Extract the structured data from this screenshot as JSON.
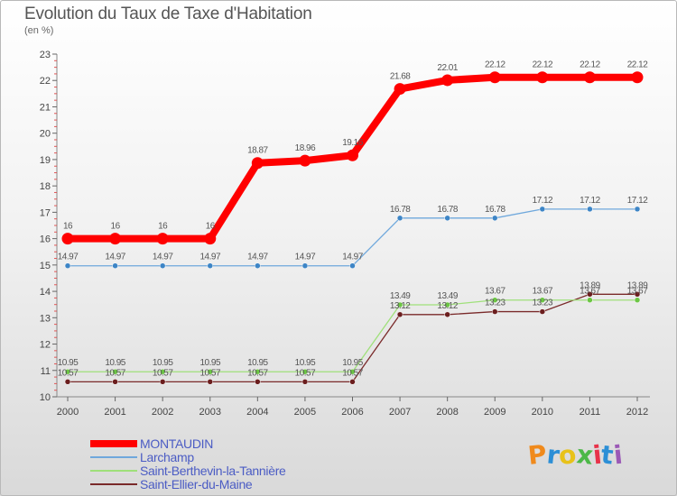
{
  "header": {
    "title": "Evolution du Taux de Taxe d'Habitation",
    "subtitle": "(en %)"
  },
  "logo": {
    "text": "Proxiti",
    "colors": [
      "#f08a1c",
      "#2c8fd6",
      "#e8c21a",
      "#4cb848",
      "#e8334a",
      "#2c8fd6",
      "#9b59b6"
    ]
  },
  "chart_data": {
    "type": "line",
    "title": "Evolution du Taux de Taxe d'Habitation",
    "ylabel": "(en %)",
    "xlabel": "",
    "x": [
      "2000",
      "2001",
      "2002",
      "2003",
      "2004",
      "2005",
      "2006",
      "2007",
      "2008",
      "2009",
      "2010",
      "2011",
      "2012"
    ],
    "ylim": [
      10,
      23
    ],
    "yticks": [
      "10",
      "11",
      "12",
      "13",
      "14",
      "15",
      "16",
      "17",
      "18",
      "19",
      "20",
      "21",
      "22",
      "23"
    ],
    "grid": false,
    "legend_position": "bottom-left",
    "series": [
      {
        "name": "MONTAUDIN",
        "color": "#ff0000",
        "style": "thick",
        "values": [
          16,
          16,
          16,
          16,
          18.87,
          18.96,
          19.16,
          21.68,
          22.01,
          22.12,
          22.12,
          22.12,
          22.12
        ],
        "labels": [
          "16",
          "16",
          "16",
          "16",
          "18.87",
          "18.96",
          "19.16",
          "21.68",
          "22.01",
          "22.12",
          "22.12",
          "22.12",
          "22.12"
        ]
      },
      {
        "name": "Larchamp",
        "color": "#6fa8dc",
        "marker": "#3d85c6",
        "values": [
          14.97,
          14.97,
          14.97,
          14.97,
          14.97,
          14.97,
          14.97,
          16.78,
          16.78,
          16.78,
          17.12,
          17.12,
          17.12
        ],
        "labels": [
          "14.97",
          "14.97",
          "14.97",
          "14.97",
          "14.97",
          "14.97",
          "14.97",
          "16.78",
          "16.78",
          "16.78",
          "17.12",
          "17.12",
          "17.12"
        ]
      },
      {
        "name": "Saint-Berthevin-la-Tannière",
        "color": "#9fe07a",
        "marker": "#6cc644",
        "values": [
          10.95,
          10.95,
          10.95,
          10.95,
          10.95,
          10.95,
          10.95,
          13.49,
          13.49,
          13.67,
          13.67,
          13.67,
          13.67
        ],
        "labels": [
          "10.95",
          "10.95",
          "10.95",
          "10.95",
          "10.95",
          "10.95",
          "10.95",
          "13.49",
          "13.49",
          "13.67",
          "13.67",
          "13.67",
          "13.67"
        ]
      },
      {
        "name": "Saint-Ellier-du-Maine",
        "color": "#7a2a2a",
        "marker": "#6b1e1e",
        "values": [
          10.57,
          10.57,
          10.57,
          10.57,
          10.57,
          10.57,
          10.57,
          13.12,
          13.12,
          13.23,
          13.23,
          13.89,
          13.89
        ],
        "labels": [
          "10.57",
          "10.57",
          "10.57",
          "10.57",
          "10.57",
          "10.57",
          "10.57",
          "13.12",
          "13.12",
          "13.23",
          "13.23",
          "13.89",
          "13.89"
        ]
      }
    ]
  }
}
